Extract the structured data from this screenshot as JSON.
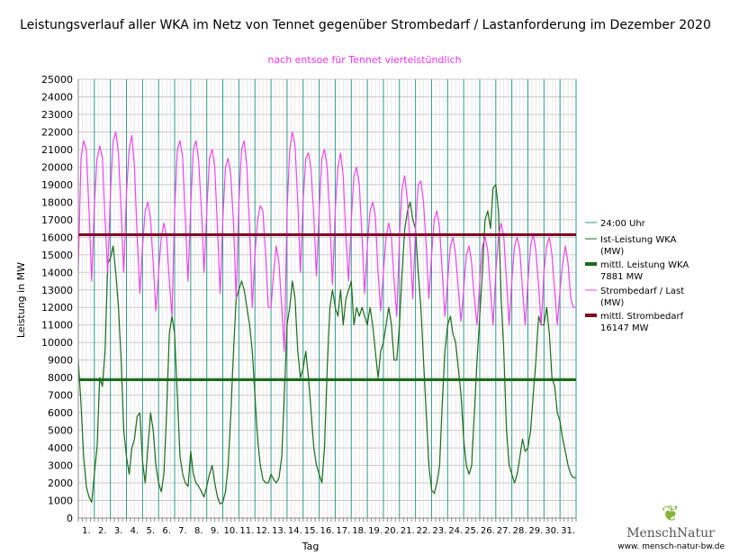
{
  "chart_data": {
    "type": "line",
    "title": "Leistungsverlauf aller WKA im Netz von Tennet gegenüber  Strombedarf / Lastanforderung im Dezember 2020",
    "subtitle": "nach entsoe für Tennet viertelstündlich",
    "xlabel": "Tag",
    "ylabel": "Leistung in MW",
    "ylim": [
      0,
      25000
    ],
    "yticks": [
      0,
      1000,
      2000,
      3000,
      4000,
      5000,
      6000,
      7000,
      8000,
      9000,
      10000,
      11000,
      12000,
      13000,
      14000,
      15000,
      16000,
      17000,
      18000,
      19000,
      20000,
      21000,
      22000,
      23000,
      24000,
      25000
    ],
    "x_tick_labels": [
      "1.",
      "2.",
      "3.",
      "4.",
      "5.",
      "6.",
      "7.",
      "8.",
      "9.",
      "10.",
      "11.",
      "12.",
      "13.",
      "14.",
      "15.",
      "16.",
      "17.",
      "18.",
      "19.",
      "20.",
      "21.",
      "22.",
      "23.",
      "24.",
      "25.",
      "26.",
      "27.",
      "28.",
      "29.",
      "30.",
      "31."
    ],
    "grid": true,
    "legend_position": "right",
    "day_marker_label": "24:00 Uhr",
    "series": [
      {
        "name": "Ist-Leistung WKA (MW)",
        "color": "#1a6b1a",
        "daily_values": [
          [
            9000,
            6500,
            3500,
            1800,
            1200,
            900
          ],
          [
            2500,
            4000,
            8000,
            7500,
            9500,
            14500
          ],
          [
            14800,
            15500,
            14000,
            12000,
            9000,
            5000
          ],
          [
            3500,
            2500,
            4000,
            4500,
            5800,
            6000
          ],
          [
            3200,
            2000,
            4000,
            6000,
            5000,
            3000
          ],
          [
            2000,
            1500,
            2500,
            6000,
            10500,
            11500
          ],
          [
            10500,
            7000,
            3500,
            2500,
            2000,
            1800
          ],
          [
            3800,
            2500,
            2000,
            1800,
            1500,
            1200
          ],
          [
            1800,
            2500,
            3000,
            2000,
            1200,
            800
          ],
          [
            900,
            1500,
            3000,
            6000,
            9500,
            12500
          ],
          [
            13000,
            13500,
            13000,
            12000,
            11000,
            9500
          ],
          [
            7000,
            4500,
            3000,
            2200,
            2000,
            2000
          ],
          [
            2500,
            2200,
            2000,
            2300,
            3500,
            7000
          ],
          [
            11000,
            12000,
            13500,
            12500,
            9500,
            8000
          ],
          [
            8500,
            9500,
            8000,
            6000,
            4000,
            3000
          ],
          [
            2500,
            2000,
            4000,
            8500,
            12000,
            13000
          ],
          [
            12000,
            11500,
            13000,
            11000,
            12500,
            13000
          ],
          [
            13500,
            11000,
            12000,
            11500,
            12000,
            11500
          ],
          [
            11000,
            12000,
            11000,
            9500,
            8000,
            9500
          ],
          [
            10000,
            11000,
            12000,
            11000,
            9000,
            9000
          ],
          [
            11000,
            14000,
            16500,
            17500,
            18000,
            17000
          ],
          [
            16500,
            14000,
            12000,
            9000,
            6000,
            3000
          ],
          [
            1600,
            1400,
            2000,
            3000,
            6500,
            9500
          ],
          [
            11000,
            11500,
            10500,
            10000,
            8500,
            7000
          ],
          [
            4500,
            3000,
            2500,
            3000,
            6000,
            9000
          ],
          [
            11500,
            14000,
            17000,
            17500,
            16500,
            18800
          ],
          [
            19000,
            17500,
            12500,
            9500,
            5000,
            3000
          ],
          [
            2500,
            2000,
            2500,
            3500,
            4500,
            3800
          ],
          [
            4000,
            5000,
            7000,
            9000,
            11500,
            11000
          ],
          [
            11000,
            12000,
            10500,
            8000,
            7500,
            6000
          ],
          [
            5500,
            4500,
            3800,
            3000,
            2500,
            2300
          ]
        ]
      },
      {
        "name": "Strombedarf / Last (MW)",
        "color": "#ee44ee",
        "daily_values": [
          [
            14200,
            20500,
            21500,
            21000,
            17500,
            13500
          ],
          [
            17800,
            20500,
            21200,
            20500,
            17000,
            14000
          ],
          [
            18500,
            21500,
            22000,
            20800,
            17500,
            14000
          ],
          [
            18500,
            21000,
            21800,
            20000,
            16000,
            12800
          ],
          [
            15500,
            17500,
            18000,
            17000,
            14500,
            11800
          ],
          [
            14000,
            16000,
            16800,
            16000,
            13500,
            11500
          ],
          [
            17500,
            21000,
            21500,
            20500,
            17000,
            13500
          ],
          [
            17800,
            21000,
            21500,
            20300,
            17500,
            14000
          ],
          [
            17500,
            20500,
            21000,
            20000,
            16500,
            12800
          ],
          [
            17000,
            20000,
            20500,
            19500,
            16800,
            12500
          ],
          [
            18000,
            21000,
            21500,
            20000,
            16500,
            12000
          ],
          [
            15000,
            17000,
            17800,
            17500,
            15000,
            12000
          ],
          [
            12000,
            14000,
            15500,
            14500,
            12000,
            9500
          ],
          [
            17500,
            21000,
            22000,
            21200,
            18000,
            14000
          ],
          [
            18000,
            20500,
            20800,
            19800,
            17200,
            13800
          ],
          [
            17500,
            20500,
            21000,
            20000,
            17000,
            13300
          ],
          [
            17500,
            20000,
            20800,
            19500,
            16000,
            13500
          ],
          [
            17000,
            19500,
            20000,
            19000,
            16000,
            12800
          ],
          [
            15500,
            17500,
            18000,
            17200,
            14000,
            11800
          ],
          [
            14000,
            16000,
            16800,
            16000,
            13500,
            11500
          ],
          [
            16000,
            18800,
            19500,
            18000,
            15500,
            12500
          ],
          [
            16500,
            19000,
            19200,
            18000,
            15500,
            12500
          ],
          [
            15000,
            17000,
            17500,
            16500,
            14000,
            11500
          ],
          [
            13500,
            15500,
            16000,
            15000,
            13000,
            11200
          ],
          [
            13000,
            15000,
            15500,
            14500,
            12500,
            11000
          ],
          [
            13500,
            15500,
            16000,
            15200,
            13000,
            11000
          ],
          [
            14000,
            16000,
            16800,
            16000,
            13500,
            11000
          ],
          [
            13500,
            15500,
            16000,
            15200,
            13000,
            11000
          ],
          [
            13500,
            15500,
            16200,
            15200,
            13200,
            11000
          ],
          [
            14000,
            15500,
            16000,
            15000,
            13000,
            11000
          ],
          [
            13000,
            14500,
            15500,
            14500,
            12500,
            12000
          ]
        ]
      }
    ],
    "reference_lines": [
      {
        "name": "mittl. Leistung WKA 7881 MW",
        "value": 7881,
        "color": "#1a6b1a"
      },
      {
        "name": "mittl. Strombedarf 16147 MW",
        "value": 16147,
        "color": "#800020"
      }
    ]
  },
  "legend": {
    "items": [
      {
        "line1": "24:00 Uhr",
        "line2": "",
        "color": "#2e9a8a",
        "width": 1
      },
      {
        "line1": "Ist-Leistung WKA",
        "line2": "(MW)",
        "color": "#1a6b1a",
        "width": 1
      },
      {
        "line1": "mittl. Leistung WKA",
        "line2": "7881 MW",
        "color": "#1a6b1a",
        "width": 4
      },
      {
        "line1": "Strombedarf / Last",
        "line2": "(MW)",
        "color": "#ee44ee",
        "width": 1
      },
      {
        "line1": "mittl. Strombedarf",
        "line2": "16147 MW",
        "color": "#800020",
        "width": 4
      }
    ]
  },
  "branding": {
    "logo_text": "MenschNatur",
    "url": "www. mensch-natur-bw.de"
  }
}
